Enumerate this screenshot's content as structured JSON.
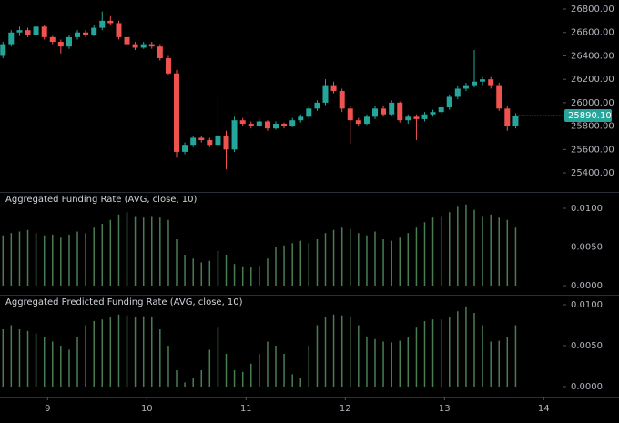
{
  "chart_data": [
    {
      "type": "candlestick",
      "up_color": "#26a69a",
      "down_color": "#ef5350",
      "x": [
        8.55,
        8.633,
        8.717,
        8.8,
        8.883,
        8.967,
        9.05,
        9.133,
        9.217,
        9.3,
        9.383,
        9.467,
        9.55,
        9.633,
        9.717,
        9.8,
        9.883,
        9.967,
        10.05,
        10.133,
        10.217,
        10.3,
        10.383,
        10.467,
        10.55,
        10.633,
        10.717,
        10.8,
        10.883,
        10.967,
        11.05,
        11.133,
        11.217,
        11.3,
        11.383,
        11.467,
        11.55,
        11.633,
        11.717,
        11.8,
        11.883,
        11.967,
        12.05,
        12.133,
        12.217,
        12.3,
        12.383,
        12.467,
        12.55,
        12.633,
        12.717,
        12.8,
        12.883,
        12.967,
        13.05,
        13.133,
        13.217,
        13.3,
        13.383,
        13.467,
        13.55,
        13.633,
        13.717
      ],
      "open": [
        26400,
        26500,
        26600,
        26620,
        26580,
        26650,
        26560,
        26520,
        26480,
        26560,
        26600,
        26580,
        26640,
        26700,
        26680,
        26560,
        26500,
        26470,
        26500,
        26480,
        26380,
        26250,
        25580,
        25640,
        25700,
        25680,
        25640,
        25720,
        25600,
        25850,
        25820,
        25800,
        25840,
        25780,
        25820,
        25800,
        25850,
        25880,
        25950,
        26000,
        26150,
        26100,
        25950,
        25850,
        25820,
        25880,
        25950,
        25900,
        26000,
        25850,
        25880,
        25860,
        25900,
        25920,
        25960,
        26050,
        26120,
        26150,
        26180,
        26200,
        26150,
        25950,
        25800
      ],
      "high": [
        26520,
        26620,
        26650,
        26640,
        26670,
        26660,
        26570,
        26540,
        26580,
        26620,
        26620,
        26660,
        26780,
        26740,
        26700,
        26580,
        26520,
        26520,
        26520,
        26500,
        26400,
        26280,
        25660,
        25720,
        25720,
        25700,
        26060,
        25760,
        25880,
        25870,
        25840,
        25860,
        25850,
        25840,
        25830,
        25870,
        25900,
        25970,
        26020,
        26200,
        26180,
        26120,
        25970,
        25870,
        25900,
        25970,
        25970,
        26020,
        26010,
        25900,
        25900,
        25920,
        25940,
        25980,
        26070,
        26140,
        26170,
        26450,
        26220,
        26220,
        26170,
        25970,
        25910
      ],
      "low": [
        26380,
        26480,
        26570,
        26560,
        26560,
        26540,
        26500,
        26420,
        26460,
        26540,
        26560,
        26570,
        26620,
        26660,
        26540,
        26480,
        26450,
        26460,
        26460,
        26360,
        26240,
        25530,
        25560,
        25620,
        25660,
        25620,
        25620,
        25430,
        25580,
        25800,
        25780,
        25790,
        25760,
        25770,
        25780,
        25790,
        25830,
        25860,
        25930,
        25980,
        26080,
        25920,
        25650,
        25800,
        25810,
        25860,
        25880,
        25890,
        25830,
        25820,
        25680,
        25840,
        25880,
        25900,
        25940,
        26030,
        26100,
        26130,
        26150,
        26120,
        25930,
        25760,
        25780
      ],
      "close": [
        26500,
        26600,
        26620,
        26580,
        26650,
        26560,
        26520,
        26480,
        26560,
        26600,
        26580,
        26640,
        26700,
        26680,
        26560,
        26500,
        26470,
        26500,
        26480,
        26380,
        26250,
        25580,
        25640,
        25700,
        25680,
        25640,
        25720,
        25600,
        25850,
        25820,
        25800,
        25840,
        25780,
        25820,
        25800,
        25850,
        25880,
        25950,
        26000,
        26150,
        26100,
        25950,
        25850,
        25820,
        25880,
        25950,
        25900,
        26000,
        25850,
        25880,
        25860,
        25900,
        25920,
        25960,
        26050,
        26120,
        26150,
        26180,
        26200,
        26150,
        25950,
        25800,
        25890.1
      ],
      "last_label": "25890.10",
      "xlim": [
        8.52,
        14.19
      ],
      "ylim": [
        25237,
        26878
      ],
      "yticks": [
        {
          "value": 25400,
          "label": "25400.00"
        },
        {
          "value": 25600,
          "label": "25600.00"
        },
        {
          "value": 25800,
          "label": "25800.00"
        },
        {
          "value": 26000,
          "label": "26000.00"
        },
        {
          "value": 26200,
          "label": "26200.00"
        },
        {
          "value": 26400,
          "label": "26400.00"
        },
        {
          "value": 26600,
          "label": "26600.00"
        },
        {
          "value": 26800,
          "label": "26800.00"
        }
      ]
    },
    {
      "type": "bar",
      "title": "Aggregated Funding Rate (AVG, close, 10)",
      "color": "#4a7d52",
      "x": [
        8.55,
        8.633,
        8.717,
        8.8,
        8.883,
        8.967,
        9.05,
        9.133,
        9.217,
        9.3,
        9.383,
        9.467,
        9.55,
        9.633,
        9.717,
        9.8,
        9.883,
        9.967,
        10.05,
        10.133,
        10.217,
        10.3,
        10.383,
        10.467,
        10.55,
        10.633,
        10.717,
        10.8,
        10.883,
        10.967,
        11.05,
        11.133,
        11.217,
        11.3,
        11.383,
        11.467,
        11.55,
        11.633,
        11.717,
        11.8,
        11.883,
        11.967,
        12.05,
        12.133,
        12.217,
        12.3,
        12.383,
        12.467,
        12.55,
        12.633,
        12.717,
        12.8,
        12.883,
        12.967,
        13.05,
        13.133,
        13.217,
        13.3,
        13.383,
        13.467,
        13.55,
        13.633,
        13.717
      ],
      "values": [
        0.0065,
        0.0068,
        0.007,
        0.0072,
        0.0068,
        0.0065,
        0.0066,
        0.0062,
        0.0066,
        0.007,
        0.0068,
        0.0075,
        0.008,
        0.0085,
        0.0092,
        0.0095,
        0.009,
        0.0088,
        0.009,
        0.0088,
        0.0085,
        0.006,
        0.004,
        0.0035,
        0.003,
        0.0032,
        0.0045,
        0.004,
        0.0028,
        0.0025,
        0.0024,
        0.0026,
        0.0035,
        0.005,
        0.0052,
        0.0055,
        0.0058,
        0.0055,
        0.006,
        0.0068,
        0.0072,
        0.0075,
        0.0073,
        0.0068,
        0.0065,
        0.007,
        0.006,
        0.0058,
        0.0062,
        0.0068,
        0.0075,
        0.0082,
        0.0088,
        0.009,
        0.0095,
        0.0102,
        0.0105,
        0.0098,
        0.009,
        0.0092,
        0.0088,
        0.0085,
        0.0075
      ],
      "xlim": [
        8.52,
        14.19
      ],
      "ylim": [
        -0.00106,
        0.012
      ],
      "yticks": [
        {
          "value": 0,
          "label": "0.0000"
        },
        {
          "value": 0.005,
          "label": "0.0050"
        },
        {
          "value": 0.01,
          "label": "0.0100"
        }
      ]
    },
    {
      "type": "bar",
      "title": "Aggregated Predicted Funding Rate (AVG, close, 10)",
      "color": "#4a7d52",
      "x": [
        8.55,
        8.633,
        8.717,
        8.8,
        8.883,
        8.967,
        9.05,
        9.133,
        9.217,
        9.3,
        9.383,
        9.467,
        9.55,
        9.633,
        9.717,
        9.8,
        9.883,
        9.967,
        10.05,
        10.133,
        10.217,
        10.3,
        10.383,
        10.467,
        10.55,
        10.633,
        10.717,
        10.8,
        10.883,
        10.967,
        11.05,
        11.133,
        11.217,
        11.3,
        11.383,
        11.467,
        11.55,
        11.633,
        11.717,
        11.8,
        11.883,
        11.967,
        12.05,
        12.133,
        12.217,
        12.3,
        12.383,
        12.467,
        12.55,
        12.633,
        12.717,
        12.8,
        12.883,
        12.967,
        13.05,
        13.133,
        13.217,
        13.3,
        13.383,
        13.467,
        13.55,
        13.633,
        13.717
      ],
      "values": [
        0.007,
        0.0075,
        0.007,
        0.0068,
        0.0065,
        0.006,
        0.0055,
        0.005,
        0.0045,
        0.006,
        0.0075,
        0.008,
        0.0082,
        0.0085,
        0.0088,
        0.0087,
        0.0085,
        0.0086,
        0.0085,
        0.007,
        0.005,
        0.002,
        0.0005,
        0.001,
        0.002,
        0.0045,
        0.0072,
        0.004,
        0.002,
        0.0018,
        0.0028,
        0.004,
        0.0055,
        0.005,
        0.004,
        0.0015,
        0.001,
        0.005,
        0.0075,
        0.0085,
        0.0088,
        0.0087,
        0.0085,
        0.0075,
        0.006,
        0.0058,
        0.0055,
        0.0054,
        0.0056,
        0.006,
        0.0072,
        0.008,
        0.0082,
        0.0082,
        0.0085,
        0.0092,
        0.0098,
        0.009,
        0.0075,
        0.0055,
        0.0056,
        0.006,
        0.0075
      ],
      "xlim": [
        8.52,
        14.19
      ],
      "ylim": [
        -0.00111,
        0.01111
      ],
      "yticks": [
        {
          "value": 0,
          "label": "0.0000"
        },
        {
          "value": 0.005,
          "label": "0.0050"
        },
        {
          "value": 0.01,
          "label": "0.0100"
        }
      ],
      "xticks": [
        9,
        10,
        11,
        12,
        13,
        14
      ]
    }
  ]
}
